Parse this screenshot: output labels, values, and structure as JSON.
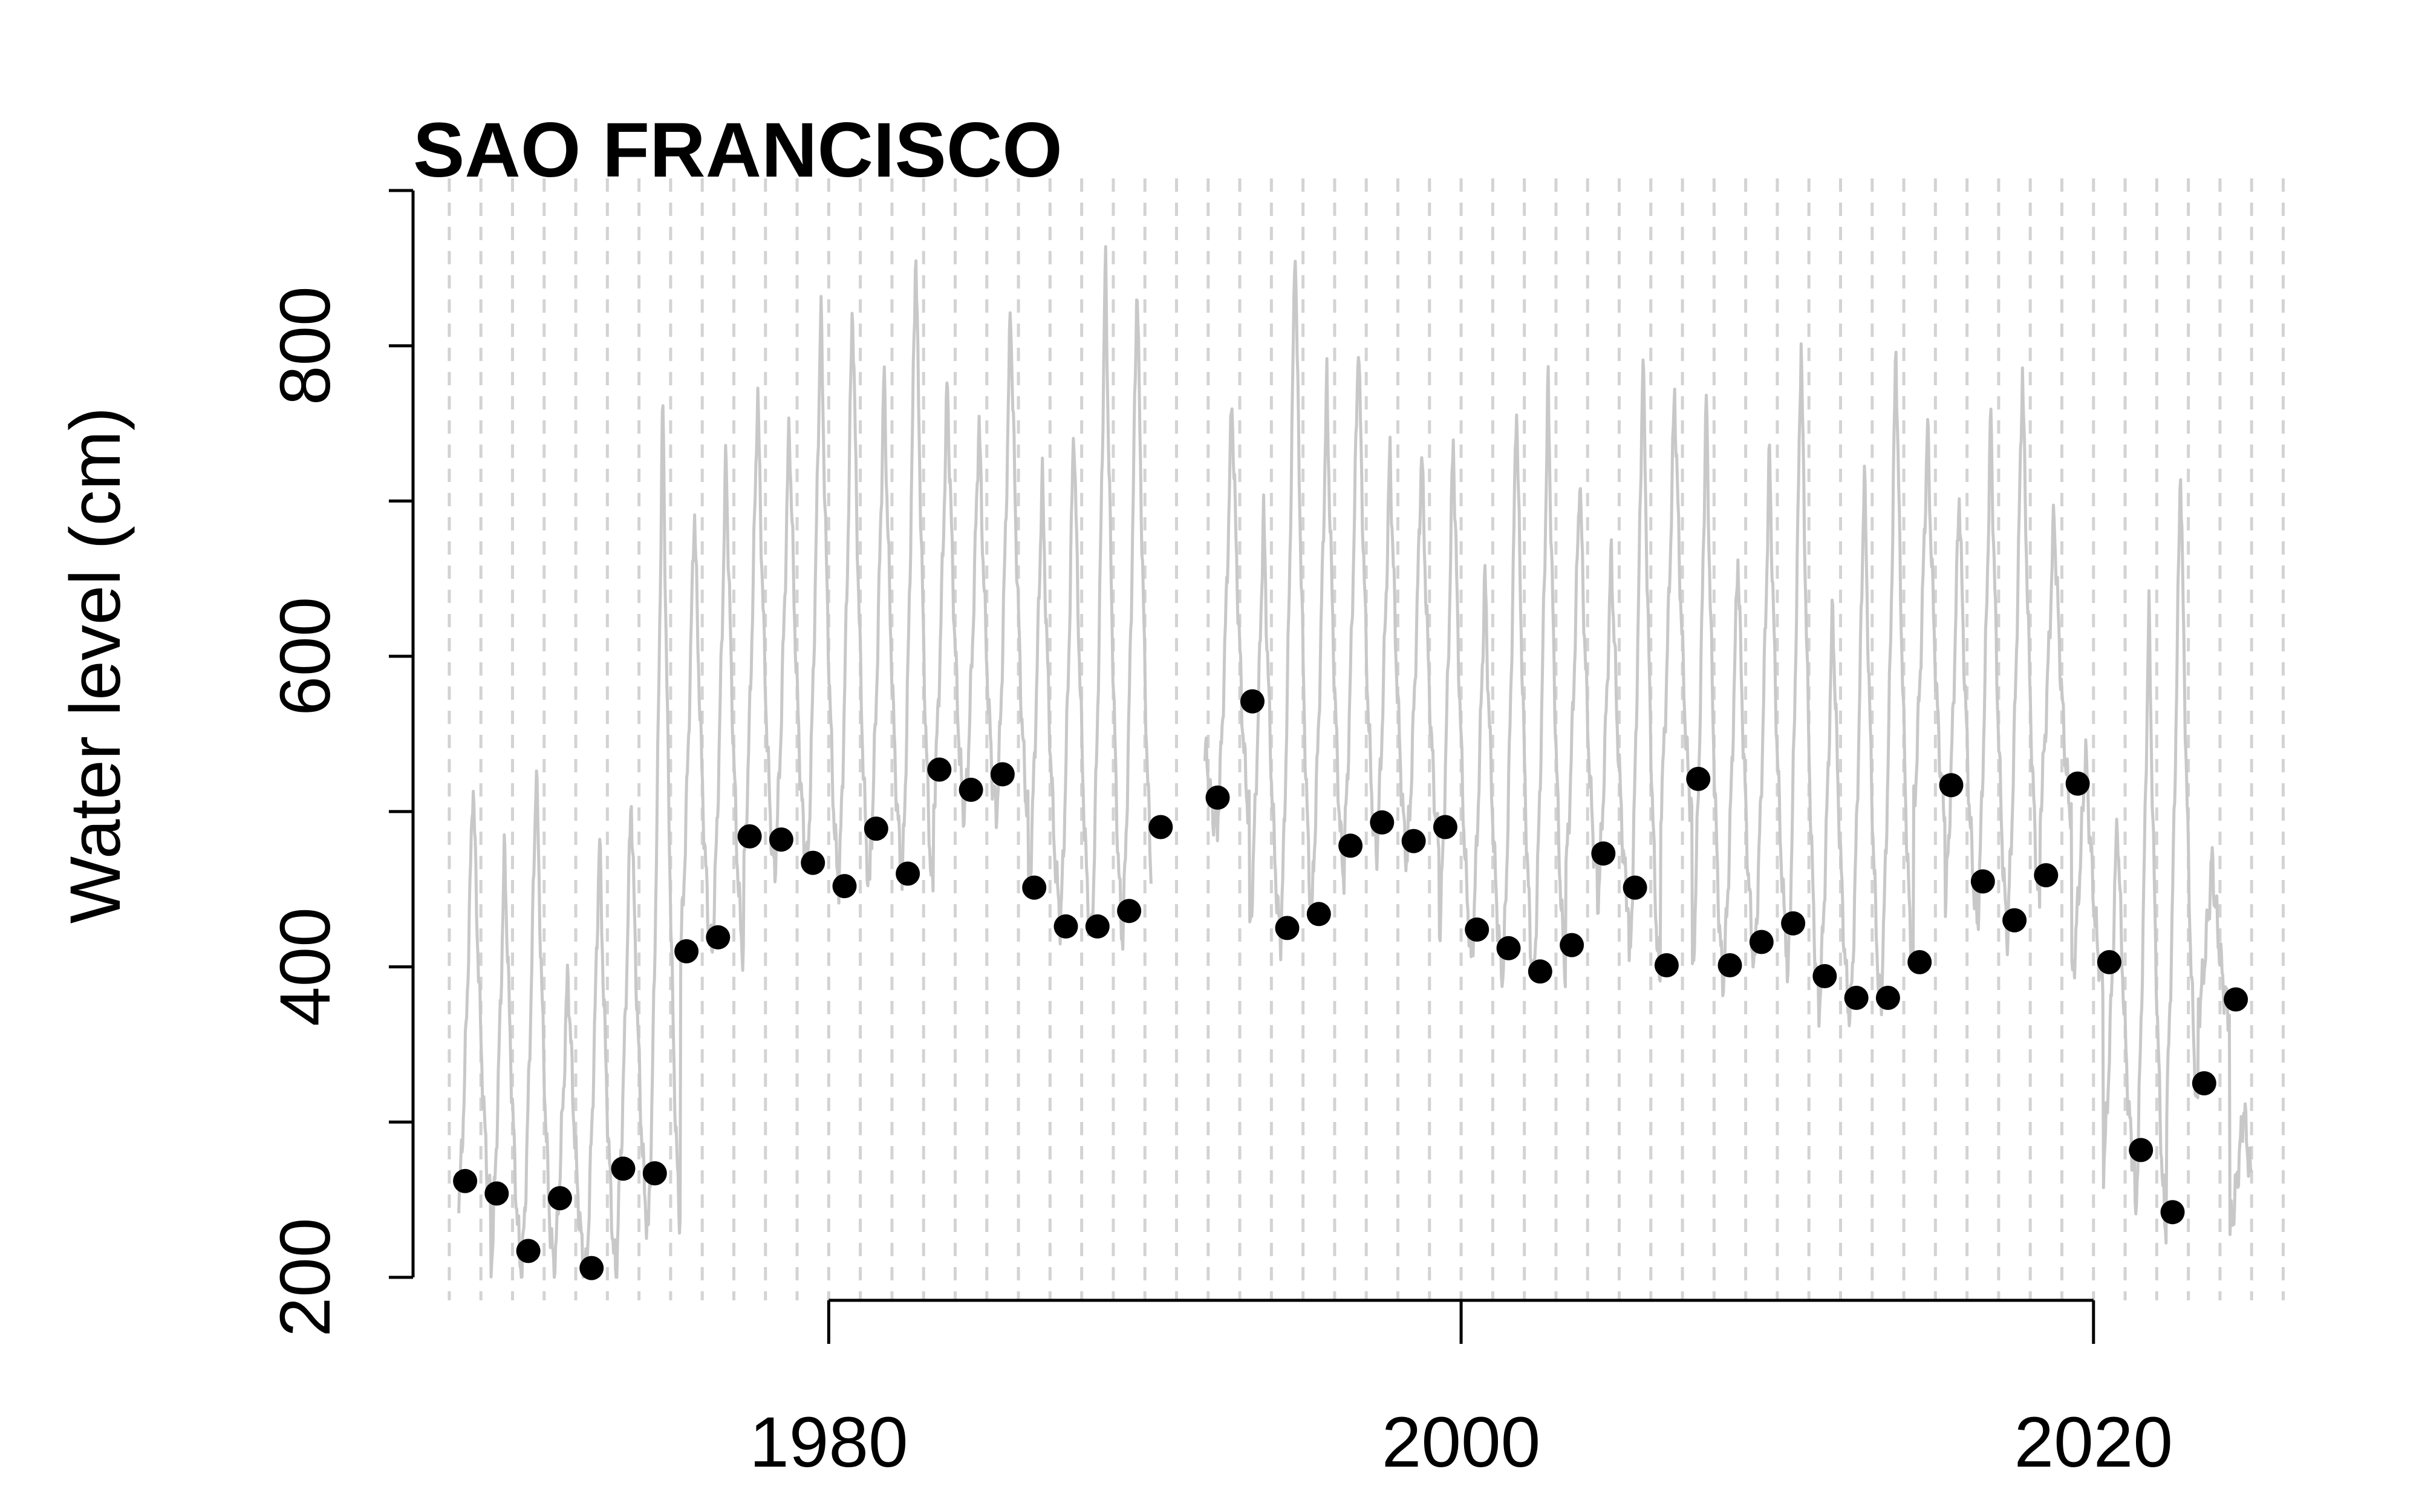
{
  "chart_data": {
    "type": "scatter",
    "title": "SAO FRANCISCO",
    "xlabel": "",
    "ylabel": "Water level (cm)",
    "xlim": [
      1967.6,
      2027.1
    ],
    "ylim": [
      200,
      900
    ],
    "x_ticks": [
      1980,
      2000,
      2020
    ],
    "x_tick_labels": [
      "1980",
      "2000",
      "2020"
    ],
    "y_ticks": [
      200,
      400,
      600,
      800
    ],
    "y_tick_labels": [
      "200",
      "400",
      "600",
      "800"
    ],
    "vertical_grid": "dashed line at each year, 1968-2026",
    "colors": {
      "points": "#000000",
      "series_line": "#c8c8c8",
      "grid": "#d3d3d3",
      "axis": "#000000"
    },
    "series": [
      {
        "kind": "annual-points",
        "x": [
          1968.5,
          1969.5,
          1970.5,
          1971.5,
          1972.5,
          1973.5,
          1974.5,
          1975.5,
          1976.5,
          1977.5,
          1978.5,
          1979.5,
          1980.5,
          1981.5,
          1982.5,
          1983.5,
          1984.5,
          1985.5,
          1986.5,
          1987.5,
          1988.5,
          1989.5,
          1990.5,
          1992.3,
          1993.4,
          1994.5,
          1995.5,
          1996.5,
          1997.5,
          1998.5,
          1999.5,
          2000.5,
          2001.5,
          2002.5,
          2003.5,
          2004.5,
          2005.5,
          2006.5,
          2007.5,
          2008.5,
          2009.5,
          2010.5,
          2011.5,
          2012.5,
          2013.5,
          2014.5,
          2015.5,
          2016.5,
          2017.5,
          2018.5,
          2019.5,
          2020.5,
          2021.5,
          2022.5,
          2023.5,
          2024.5
        ],
        "y": [
          262,
          254,
          217,
          251,
          206,
          270,
          267,
          410,
          419,
          484,
          482,
          467,
          452,
          489,
          460,
          527,
          514,
          524,
          451,
          426,
          426,
          436,
          490,
          509,
          571,
          425,
          434,
          478,
          493,
          481,
          490,
          424,
          412,
          397,
          414,
          473,
          451,
          401,
          521,
          401,
          416,
          428,
          394,
          380,
          380,
          403,
          517,
          455,
          430,
          459,
          518,
          403,
          282,
          242,
          325,
          379
        ]
      },
      {
        "kind": "seasonal-line",
        "year_range": [
          1968.3,
          2025.0
        ],
        "gap": [
          1990.2,
          1991.9
        ],
        "annual_min": [
          250,
          205,
          210,
          205,
          200,
          230,
          240,
          410,
          410,
          460,
          470,
          460,
          450,
          470,
          450,
          500,
          500,
          500,
          440,
          420,
          420,
          430,
          480,
          490,
          500,
          420,
          430,
          460,
          480,
          470,
          480,
          420,
          400,
          390,
          400,
          460,
          440,
          390,
          500,
          390,
          400,
          420,
          380,
          370,
          370,
          400,
          500,
          440,
          420,
          440,
          500,
          390,
          270,
          230,
          310,
          370,
          230
        ],
        "annual_max": [
          525,
          480,
          535,
          400,
          485,
          515,
          770,
          700,
          735,
          775,
          755,
          830,
          835,
          785,
          870,
          780,
          755,
          830,
          720,
          755,
          860,
          850,
          680,
          575,
          770,
          695,
          875,
          780,
          810,
          735,
          735,
          745,
          655,
          770,
          780,
          720,
          670,
          800,
          775,
          770,
          670,
          735,
          810,
          635,
          725,
          805,
          750,
          710,
          760,
          790,
          695,
          540,
          500,
          635,
          730,
          470,
          310
        ]
      }
    ]
  }
}
